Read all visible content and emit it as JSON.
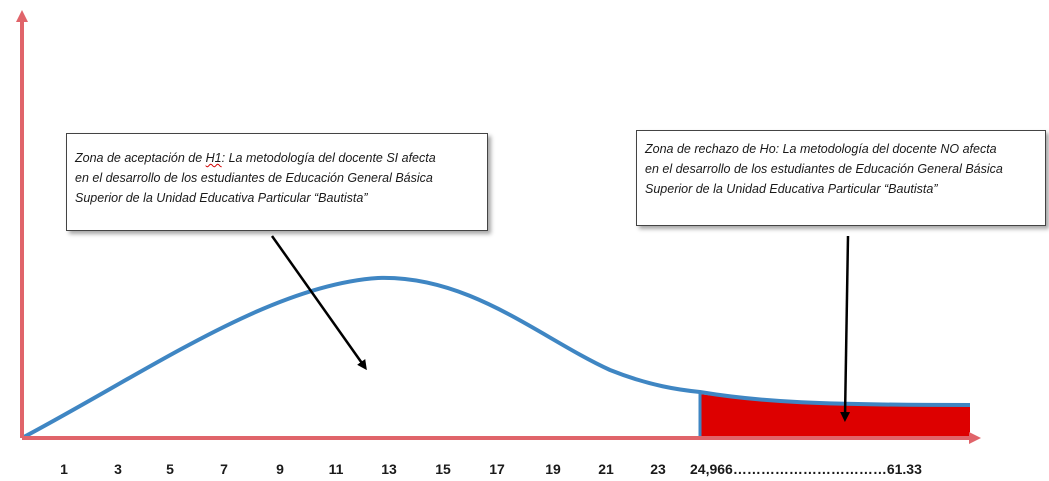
{
  "colors": {
    "axis": "#e0646a",
    "curve": "#3f86c3",
    "rejection_fill": "#dd0000",
    "pointer": "#000000"
  },
  "acceptance_note": {
    "prefix": "Zona de aceptación de ",
    "h1": "H1",
    "line1_rest": ": La metodología del docente SI afecta",
    "line2": "en el desarrollo de los estudiantes de Educación General Básica",
    "line3": "Superior de la Unidad Educativa Particular “Bautista”"
  },
  "rejection_note": {
    "line1": "Zona de rechazo de Ho: La metodología del docente NO afecta",
    "line2": "en el desarrollo de los estudiantes de Educación General Básica",
    "line3": "Superior de la Unidad Educativa Particular “Bautista”"
  },
  "x_axis": {
    "ticks": [
      "1",
      "3",
      "5",
      "7",
      "9",
      "11",
      "13",
      "15",
      "17",
      "19",
      "21",
      "23",
      "24,966……………………………61.33"
    ]
  },
  "curve": {
    "peak_x": 13,
    "rejection_start": "24,966",
    "rejection_end": "61.33"
  }
}
